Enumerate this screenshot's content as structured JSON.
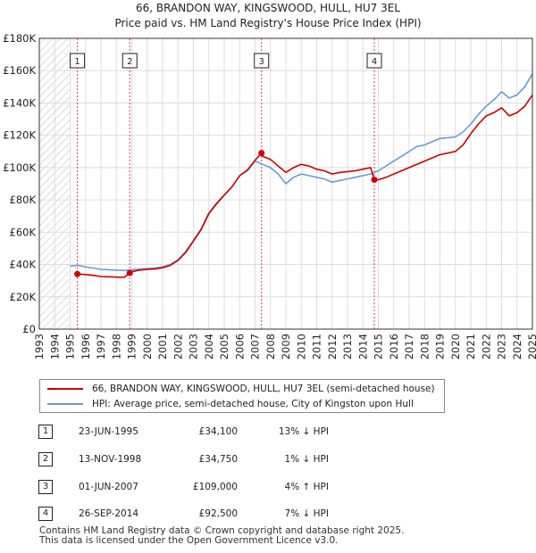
{
  "title_line1": "66, BRANDON WAY, KINGSWOOD, HULL, HU7 3EL",
  "title_line2": "Price paid vs. HM Land Registry's House Price Index (HPI)",
  "colors": {
    "property": "#cc0000",
    "hpi": "#6a9bd4",
    "hatch": "#bbbbbb",
    "grid": "#dddddd"
  },
  "legend": {
    "property_label": "66, BRANDON WAY, KINGSWOOD, HULL, HU7 3EL (semi-detached house)",
    "hpi_label": "HPI: Average price, semi-detached house, City of Kingston upon Hull"
  },
  "chart_data": {
    "type": "line",
    "title": "66, BRANDON WAY, KINGSWOOD, HULL, HU7 3EL — Price paid vs. HM Land Registry's House Price Index (HPI)",
    "xlabel": "",
    "ylabel": "",
    "xlim": [
      1993,
      2025
    ],
    "ylim": [
      0,
      180000
    ],
    "x_tick_labels": [
      "1993",
      "1994",
      "1995",
      "1996",
      "1997",
      "1998",
      "1999",
      "2000",
      "2001",
      "2002",
      "2003",
      "2004",
      "2005",
      "2006",
      "2007",
      "2008",
      "2009",
      "2010",
      "2011",
      "2012",
      "2013",
      "2014",
      "2015",
      "2016",
      "2017",
      "2018",
      "2019",
      "2020",
      "2021",
      "2022",
      "2023",
      "2024",
      "2025"
    ],
    "y_tick_labels": [
      "£0",
      "£20K",
      "£40K",
      "£60K",
      "£80K",
      "£100K",
      "£120K",
      "£140K",
      "£160K",
      "£180K"
    ],
    "y_tick_values": [
      0,
      20000,
      40000,
      60000,
      80000,
      100000,
      120000,
      140000,
      160000,
      180000
    ],
    "data_start_year": 1995.0,
    "series": [
      {
        "name": "HPI: Average price, semi-detached house, City of Kingston upon Hull",
        "x": [
          1995.0,
          1995.5,
          1996.0,
          1996.5,
          1997.0,
          1997.5,
          1998.0,
          1998.5,
          1999.0,
          1999.5,
          2000.0,
          2000.5,
          2001.0,
          2001.5,
          2002.0,
          2002.5,
          2003.0,
          2003.5,
          2004.0,
          2004.5,
          2005.0,
          2005.5,
          2006.0,
          2006.5,
          2007.0,
          2007.5,
          2008.0,
          2008.5,
          2009.0,
          2009.5,
          2010.0,
          2010.5,
          2011.0,
          2011.5,
          2012.0,
          2012.5,
          2013.0,
          2013.5,
          2014.0,
          2014.5,
          2015.0,
          2015.5,
          2016.0,
          2016.5,
          2017.0,
          2017.5,
          2018.0,
          2018.5,
          2019.0,
          2019.5,
          2020.0,
          2020.5,
          2021.0,
          2021.5,
          2022.0,
          2022.5,
          2023.0,
          2023.5,
          2024.0,
          2024.5,
          2025.0
        ],
        "y": [
          39000,
          39500,
          38500,
          37800,
          37000,
          36800,
          36500,
          36300,
          36800,
          37200,
          37500,
          37800,
          38500,
          40000,
          43000,
          48000,
          55000,
          62000,
          72000,
          78000,
          83000,
          88000,
          95000,
          98000,
          104000,
          102000,
          100000,
          96000,
          90000,
          94000,
          96000,
          95000,
          94000,
          93000,
          91000,
          92000,
          93000,
          94000,
          95000,
          96000,
          98000,
          101000,
          104000,
          107000,
          110000,
          113000,
          114000,
          116000,
          118000,
          118500,
          119000,
          122000,
          127000,
          133000,
          138000,
          142000,
          147000,
          143000,
          145000,
          150000,
          158000
        ]
      },
      {
        "name": "66, BRANDON WAY, KINGSWOOD, HULL, HU7 3EL (semi-detached house)",
        "x": [
          1995.47,
          1996.0,
          1996.5,
          1997.0,
          1997.5,
          1998.0,
          1998.5,
          1998.87,
          1999.0,
          1999.5,
          2000.0,
          2000.5,
          2001.0,
          2001.5,
          2002.0,
          2002.5,
          2003.0,
          2003.5,
          2004.0,
          2004.5,
          2005.0,
          2005.5,
          2006.0,
          2006.5,
          2007.0,
          2007.42,
          2007.5,
          2008.0,
          2008.5,
          2009.0,
          2009.5,
          2010.0,
          2010.5,
          2011.0,
          2011.5,
          2012.0,
          2012.5,
          2013.0,
          2013.5,
          2014.0,
          2014.5,
          2014.74,
          2015.0,
          2015.5,
          2016.0,
          2016.5,
          2017.0,
          2017.5,
          2018.0,
          2018.5,
          2019.0,
          2019.5,
          2020.0,
          2020.5,
          2021.0,
          2021.5,
          2022.0,
          2022.5,
          2023.0,
          2023.5,
          2024.0,
          2024.5,
          2025.0
        ],
        "y": [
          34100,
          33800,
          33300,
          32600,
          32400,
          32200,
          32000,
          34750,
          35500,
          36500,
          37000,
          37200,
          38000,
          39500,
          42500,
          47500,
          54500,
          61500,
          71500,
          77500,
          83000,
          88000,
          95000,
          98500,
          104500,
          109000,
          107000,
          105000,
          101000,
          97000,
          100000,
          102000,
          101000,
          99000,
          98000,
          96000,
          97000,
          97500,
          98000,
          99000,
          100000,
          92500,
          92500,
          94000,
          96000,
          98000,
          100000,
          102000,
          104000,
          106000,
          108000,
          109000,
          110000,
          114000,
          121000,
          127000,
          132000,
          134000,
          137000,
          132000,
          134000,
          138000,
          145000
        ]
      }
    ],
    "sales": [
      {
        "num": "1",
        "year": 1995.47,
        "price": 34100
      },
      {
        "num": "2",
        "year": 1998.87,
        "price": 34750
      },
      {
        "num": "3",
        "year": 2007.42,
        "price": 109000
      },
      {
        "num": "4",
        "year": 2014.74,
        "price": 92500
      }
    ]
  },
  "sales_table": [
    {
      "num": "1",
      "date": "23-JUN-1995",
      "price": "£34,100",
      "hpi": "13% ↓ HPI"
    },
    {
      "num": "2",
      "date": "13-NOV-1998",
      "price": "£34,750",
      "hpi": "1% ↓ HPI"
    },
    {
      "num": "3",
      "date": "01-JUN-2007",
      "price": "£109,000",
      "hpi": "4% ↑ HPI"
    },
    {
      "num": "4",
      "date": "26-SEP-2014",
      "price": "£92,500",
      "hpi": "7% ↓ HPI"
    }
  ],
  "footer_line1": "Contains HM Land Registry data © Crown copyright and database right 2025.",
  "footer_line2": "This data is licensed under the Open Government Licence v3.0."
}
